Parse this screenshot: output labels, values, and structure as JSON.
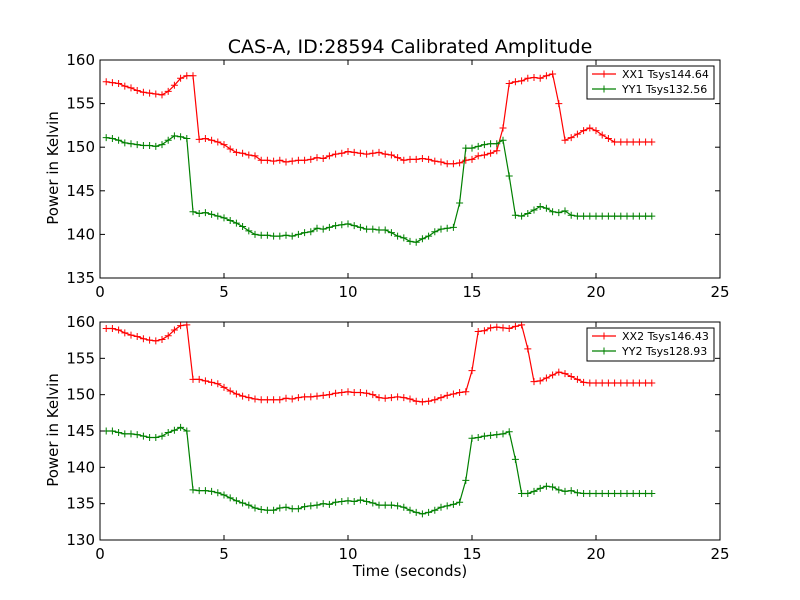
{
  "figure": {
    "title": "CAS-A, ID:28594 Calibrated Amplitude",
    "xlabel": "Time (seconds)"
  },
  "colors": {
    "xx": "#ff0000",
    "yy": "#008000"
  },
  "chart_data": [
    {
      "type": "line",
      "ylabel": "Power in Kelvin",
      "xlim": [
        0,
        25
      ],
      "ylim": [
        135,
        160
      ],
      "xticks": [
        0,
        5,
        10,
        15,
        20,
        25
      ],
      "yticks": [
        135,
        140,
        145,
        150,
        155,
        160
      ],
      "grid": false,
      "legend_position": "top-right",
      "x": [
        0.25,
        0.5,
        0.75,
        1.0,
        1.25,
        1.5,
        1.75,
        2.0,
        2.25,
        2.5,
        2.75,
        3.0,
        3.25,
        3.5,
        3.75,
        4.0,
        4.25,
        4.5,
        4.75,
        5.0,
        5.25,
        5.5,
        5.75,
        6.0,
        6.25,
        6.5,
        6.75,
        7.0,
        7.25,
        7.5,
        7.75,
        8.0,
        8.25,
        8.5,
        8.75,
        9.0,
        9.25,
        9.5,
        9.75,
        10.0,
        10.25,
        10.5,
        10.75,
        11.0,
        11.25,
        11.5,
        11.75,
        12.0,
        12.25,
        12.5,
        12.75,
        13.0,
        13.25,
        13.5,
        13.75,
        14.0,
        14.25,
        14.5,
        14.75,
        15.0,
        15.25,
        15.5,
        15.75,
        16.0,
        16.25,
        16.5,
        16.75,
        17.0,
        17.25,
        17.5,
        17.75,
        18.0,
        18.25,
        18.5,
        18.75,
        19.0,
        19.25,
        19.5,
        19.75,
        20.0,
        20.25,
        20.5,
        20.75,
        21.0,
        21.25,
        21.5,
        21.75,
        22.0,
        22.25
      ],
      "series": [
        {
          "name": "XX1 Tsys144.64",
          "values": [
            157.5,
            157.4,
            157.3,
            157.0,
            156.8,
            156.5,
            156.3,
            156.2,
            156.1,
            156.0,
            156.4,
            157.1,
            157.9,
            158.2,
            158.2,
            150.9,
            151.0,
            150.8,
            150.6,
            150.3,
            149.8,
            149.4,
            149.3,
            149.1,
            149.0,
            148.5,
            148.5,
            148.4,
            148.5,
            148.3,
            148.4,
            148.5,
            148.5,
            148.6,
            148.8,
            148.7,
            149.0,
            149.2,
            149.3,
            149.5,
            149.4,
            149.3,
            149.2,
            149.3,
            149.4,
            149.2,
            149.1,
            148.8,
            148.5,
            148.6,
            148.6,
            148.7,
            148.6,
            148.4,
            148.3,
            148.1,
            148.1,
            148.2,
            148.5,
            148.6,
            149.0,
            149.1,
            149.3,
            149.6,
            152.2,
            157.3,
            157.5,
            157.6,
            157.9,
            158.0,
            157.9,
            158.2,
            158.4,
            155.0,
            150.8,
            151.1,
            151.5,
            151.9,
            152.2,
            151.9,
            151.4,
            151.0,
            150.6,
            150.6,
            150.6,
            150.6,
            150.6,
            150.6,
            150.6
          ],
          "values_note": ""
        },
        {
          "name": "YY1 Tsys132.56",
          "values": [
            151.1,
            151.0,
            150.8,
            150.5,
            150.4,
            150.3,
            150.2,
            150.2,
            150.1,
            150.3,
            150.8,
            151.3,
            151.2,
            151.0,
            142.6,
            142.4,
            142.5,
            142.3,
            142.1,
            141.9,
            141.6,
            141.3,
            140.9,
            140.4,
            140.0,
            139.9,
            139.9,
            139.8,
            139.8,
            139.9,
            139.8,
            140.0,
            140.2,
            140.3,
            140.7,
            140.6,
            140.8,
            141.0,
            141.1,
            141.2,
            141.0,
            140.8,
            140.6,
            140.6,
            140.5,
            140.5,
            140.2,
            139.8,
            139.6,
            139.2,
            139.1,
            139.5,
            139.8,
            140.3,
            140.6,
            140.7,
            140.8,
            143.6,
            149.9,
            149.9,
            150.1,
            150.3,
            150.4,
            150.4,
            150.8,
            146.7,
            142.2,
            142.1,
            142.4,
            142.8,
            143.2,
            143.0,
            142.6,
            142.5,
            142.7,
            142.2,
            142.1,
            142.1,
            142.1,
            142.1,
            142.1,
            142.1,
            142.1,
            142.1,
            142.1,
            142.1,
            142.1,
            142.1,
            142.1
          ],
          "values_note": ""
        }
      ]
    },
    {
      "type": "line",
      "ylabel": "Power in Kelvin",
      "xlabel": "Time (seconds)",
      "xlim": [
        0,
        25
      ],
      "ylim": [
        130,
        160
      ],
      "xticks": [
        0,
        5,
        10,
        15,
        20,
        25
      ],
      "yticks": [
        130,
        135,
        140,
        145,
        150,
        155,
        160
      ],
      "grid": false,
      "legend_position": "top-right",
      "series": [
        {
          "name": "XX2 Tsys146.43",
          "values": [
            159.1,
            159.1,
            158.9,
            158.5,
            158.2,
            158.0,
            157.7,
            157.5,
            157.4,
            157.6,
            158.1,
            158.9,
            159.5,
            159.6,
            152.1,
            152.1,
            151.9,
            151.7,
            151.5,
            151.0,
            150.5,
            150.1,
            149.8,
            149.6,
            149.4,
            149.3,
            149.3,
            149.3,
            149.3,
            149.5,
            149.4,
            149.6,
            149.7,
            149.7,
            149.8,
            149.9,
            150.0,
            150.2,
            150.3,
            150.4,
            150.3,
            150.3,
            150.2,
            150.0,
            149.6,
            149.5,
            149.6,
            149.7,
            149.6,
            149.4,
            149.1,
            149.0,
            149.1,
            149.3,
            149.6,
            149.9,
            150.1,
            150.3,
            150.4,
            153.3,
            158.7,
            158.8,
            159.2,
            159.3,
            159.2,
            159.1,
            159.4,
            159.6,
            156.3,
            151.8,
            151.9,
            152.3,
            152.7,
            153.1,
            152.9,
            152.5,
            152.1,
            151.7,
            151.6,
            151.6,
            151.6,
            151.6,
            151.6,
            151.6,
            151.6,
            151.6,
            151.6,
            151.6,
            151.6
          ]
        },
        {
          "name": "YY2 Tsys128.93",
          "values": [
            145.0,
            145.0,
            144.8,
            144.6,
            144.6,
            144.5,
            144.3,
            144.1,
            144.1,
            144.3,
            144.8,
            145.1,
            145.5,
            145.0,
            136.9,
            136.8,
            136.8,
            136.7,
            136.5,
            136.2,
            135.8,
            135.4,
            135.1,
            134.8,
            134.4,
            134.2,
            134.1,
            134.1,
            134.4,
            134.5,
            134.3,
            134.3,
            134.6,
            134.7,
            134.8,
            135.0,
            134.9,
            135.2,
            135.3,
            135.4,
            135.3,
            135.5,
            135.3,
            135.1,
            134.8,
            134.8,
            134.8,
            134.7,
            134.5,
            134.1,
            133.8,
            133.6,
            133.8,
            134.1,
            134.5,
            134.7,
            134.9,
            135.2,
            138.2,
            144.0,
            144.1,
            144.3,
            144.4,
            144.5,
            144.6,
            144.9,
            141.1,
            136.4,
            136.4,
            136.7,
            137.1,
            137.4,
            137.3,
            136.9,
            136.7,
            136.8,
            136.5,
            136.4,
            136.4,
            136.4,
            136.4,
            136.4,
            136.4,
            136.4,
            136.4,
            136.4,
            136.4,
            136.4,
            136.4
          ]
        }
      ]
    }
  ]
}
